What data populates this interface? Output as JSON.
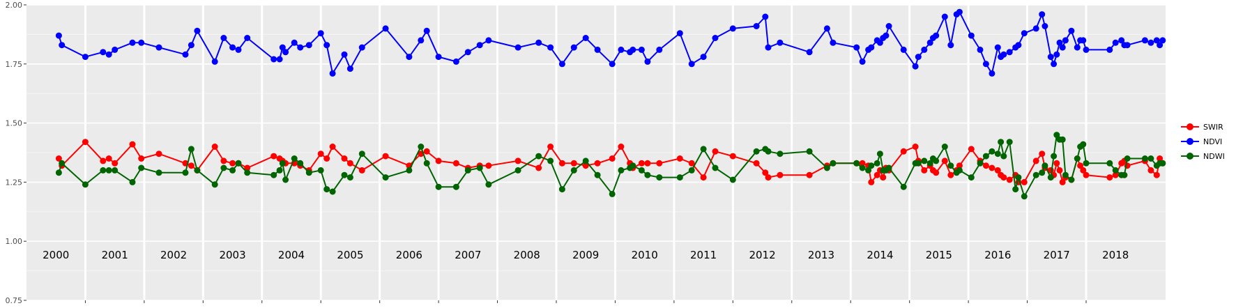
{
  "chart_data": {
    "type": "line",
    "title": "",
    "xlabel": "",
    "ylabel": "",
    "ylim": [
      0.75,
      2.0
    ],
    "yticks": [
      "0.75",
      "1.00",
      "1.25",
      "1.50",
      "1.75",
      "2.00"
    ],
    "ytick_values": [
      0.75,
      1.0,
      1.25,
      1.5,
      1.75,
      2.0
    ],
    "xlim": [
      1999.5,
      2018.85
    ],
    "years": [
      "2000",
      "2001",
      "2002",
      "2003",
      "2004",
      "2005",
      "2006",
      "2007",
      "2008",
      "2009",
      "2010",
      "2011",
      "2012",
      "2013",
      "2014",
      "2015",
      "2016",
      "2017",
      "2018"
    ],
    "grid": true,
    "legend_position": "right",
    "series": [
      {
        "name": "SWIR",
        "color": "#ff0000",
        "x": [
          2000.05,
          2000.1,
          2000.5,
          2000.8,
          2000.9,
          2001.0,
          2001.3,
          2001.45,
          2001.75,
          2002.2,
          2002.3,
          2002.4,
          2002.7,
          2002.85,
          2003.0,
          2003.1,
          2003.25,
          2003.7,
          2003.8,
          2003.85,
          2003.9,
          2004.05,
          2004.15,
          2004.3,
          2004.5,
          2004.6,
          2004.7,
          2004.9,
          2005.0,
          2005.2,
          2005.6,
          2006.0,
          2006.2,
          2006.3,
          2006.5,
          2006.8,
          2007.0,
          2007.2,
          2007.35,
          2007.85,
          2008.2,
          2008.4,
          2008.6,
          2008.8,
          2009.0,
          2009.2,
          2009.45,
          2009.6,
          2009.75,
          2009.8,
          2009.95,
          2010.05,
          2010.25,
          2010.6,
          2010.8,
          2011.0,
          2011.2,
          2011.5,
          2011.9,
          2012.05,
          2012.1,
          2012.3,
          2012.8,
          2013.1,
          2013.2,
          2013.6,
          2013.7,
          2013.8,
          2013.85,
          2013.95,
          2014.0,
          2014.05,
          2014.1,
          2014.15,
          2014.4,
          2014.6,
          2014.65,
          2014.75,
          2014.85,
          2014.9,
          2014.95,
          2015.1,
          2015.2,
          2015.3,
          2015.35,
          2015.55,
          2015.7,
          2015.8,
          2015.9,
          2016.0,
          2016.05,
          2016.1,
          2016.2,
          2016.3,
          2016.35,
          2016.45,
          2016.65,
          2016.75,
          2016.8,
          2016.9,
          2016.95,
          2017.0,
          2017.05,
          2017.1,
          2017.15,
          2017.25,
          2017.35,
          2017.4,
          2017.45,
          2017.5,
          2017.9,
          2018.0,
          2018.1,
          2018.15,
          2018.2,
          2018.5,
          2018.6,
          2018.7,
          2018.75,
          2018.8
        ],
        "values": [
          1.35,
          1.32,
          1.42,
          1.34,
          1.35,
          1.33,
          1.41,
          1.35,
          1.37,
          1.33,
          1.32,
          1.3,
          1.4,
          1.34,
          1.33,
          1.33,
          1.31,
          1.36,
          1.35,
          1.34,
          1.33,
          1.33,
          1.32,
          1.3,
          1.37,
          1.35,
          1.4,
          1.35,
          1.33,
          1.3,
          1.36,
          1.32,
          1.37,
          1.38,
          1.34,
          1.33,
          1.31,
          1.32,
          1.32,
          1.34,
          1.31,
          1.4,
          1.33,
          1.33,
          1.32,
          1.33,
          1.35,
          1.4,
          1.33,
          1.31,
          1.33,
          1.33,
          1.33,
          1.35,
          1.33,
          1.27,
          1.38,
          1.36,
          1.33,
          1.29,
          1.27,
          1.28,
          1.28,
          1.32,
          1.33,
          1.33,
          1.33,
          1.32,
          1.25,
          1.28,
          1.3,
          1.27,
          1.31,
          1.3,
          1.38,
          1.4,
          1.34,
          1.3,
          1.32,
          1.3,
          1.29,
          1.34,
          1.28,
          1.3,
          1.32,
          1.39,
          1.34,
          1.32,
          1.31,
          1.3,
          1.28,
          1.27,
          1.26,
          1.28,
          1.25,
          1.25,
          1.34,
          1.37,
          1.31,
          1.3,
          1.28,
          1.33,
          1.3,
          1.25,
          1.27,
          1.26,
          1.35,
          1.32,
          1.3,
          1.28,
          1.27,
          1.28,
          1.33,
          1.34,
          1.32,
          1.34,
          1.3,
          1.28,
          1.35,
          1.33
        ]
      },
      {
        "name": "NDVI",
        "color": "#0000ff",
        "x": [
          2000.05,
          2000.1,
          2000.5,
          2000.8,
          2000.9,
          2001.0,
          2001.3,
          2001.45,
          2001.75,
          2002.2,
          2002.3,
          2002.4,
          2002.7,
          2002.85,
          2003.0,
          2003.1,
          2003.25,
          2003.7,
          2003.8,
          2003.85,
          2003.9,
          2004.05,
          2004.15,
          2004.3,
          2004.5,
          2004.6,
          2004.7,
          2004.9,
          2005.0,
          2005.2,
          2005.6,
          2006.0,
          2006.2,
          2006.3,
          2006.5,
          2006.8,
          2007.0,
          2007.2,
          2007.35,
          2007.85,
          2008.2,
          2008.4,
          2008.6,
          2008.8,
          2009.0,
          2009.2,
          2009.45,
          2009.6,
          2009.75,
          2009.8,
          2009.95,
          2010.05,
          2010.25,
          2010.6,
          2010.8,
          2011.0,
          2011.2,
          2011.5,
          2011.9,
          2012.05,
          2012.1,
          2012.3,
          2012.8,
          2013.1,
          2013.2,
          2013.6,
          2013.7,
          2013.8,
          2013.85,
          2013.95,
          2014.0,
          2014.05,
          2014.1,
          2014.15,
          2014.4,
          2014.6,
          2014.65,
          2014.75,
          2014.85,
          2014.9,
          2014.95,
          2015.1,
          2015.2,
          2015.3,
          2015.35,
          2015.55,
          2015.7,
          2015.8,
          2015.9,
          2016.0,
          2016.05,
          2016.1,
          2016.2,
          2016.3,
          2016.35,
          2016.45,
          2016.65,
          2016.75,
          2016.8,
          2016.9,
          2016.95,
          2017.0,
          2017.05,
          2017.1,
          2017.15,
          2017.25,
          2017.35,
          2017.4,
          2017.45,
          2017.5,
          2017.9,
          2018.0,
          2018.1,
          2018.15,
          2018.2,
          2018.5,
          2018.6,
          2018.7,
          2018.75,
          2018.8
        ],
        "values": [
          1.87,
          1.83,
          1.78,
          1.8,
          1.79,
          1.81,
          1.84,
          1.84,
          1.82,
          1.79,
          1.83,
          1.89,
          1.76,
          1.86,
          1.82,
          1.81,
          1.86,
          1.77,
          1.77,
          1.82,
          1.8,
          1.84,
          1.82,
          1.83,
          1.88,
          1.83,
          1.71,
          1.79,
          1.73,
          1.82,
          1.9,
          1.78,
          1.85,
          1.89,
          1.78,
          1.76,
          1.8,
          1.83,
          1.85,
          1.82,
          1.84,
          1.82,
          1.75,
          1.82,
          1.86,
          1.81,
          1.75,
          1.81,
          1.8,
          1.81,
          1.81,
          1.76,
          1.81,
          1.88,
          1.75,
          1.78,
          1.86,
          1.9,
          1.91,
          1.95,
          1.82,
          1.84,
          1.8,
          1.9,
          1.84,
          1.82,
          1.76,
          1.81,
          1.82,
          1.85,
          1.84,
          1.86,
          1.87,
          1.91,
          1.81,
          1.74,
          1.78,
          1.81,
          1.84,
          1.86,
          1.87,
          1.95,
          1.83,
          1.96,
          1.97,
          1.87,
          1.81,
          1.75,
          1.71,
          1.82,
          1.78,
          1.79,
          1.8,
          1.82,
          1.83,
          1.88,
          1.9,
          1.96,
          1.91,
          1.78,
          1.75,
          1.79,
          1.84,
          1.82,
          1.85,
          1.89,
          1.82,
          1.85,
          1.85,
          1.81,
          1.81,
          1.84,
          1.85,
          1.83,
          1.83,
          1.85,
          1.84,
          1.85,
          1.83,
          1.85
        ]
      },
      {
        "name": "NDWI",
        "color": "#006400",
        "x": [
          2000.05,
          2000.1,
          2000.5,
          2000.8,
          2000.9,
          2001.0,
          2001.3,
          2001.45,
          2001.75,
          2002.2,
          2002.3,
          2002.4,
          2002.7,
          2002.85,
          2003.0,
          2003.1,
          2003.25,
          2003.7,
          2003.8,
          2003.85,
          2003.9,
          2004.05,
          2004.15,
          2004.3,
          2004.5,
          2004.6,
          2004.7,
          2004.9,
          2005.0,
          2005.2,
          2005.6,
          2006.0,
          2006.2,
          2006.3,
          2006.5,
          2006.8,
          2007.0,
          2007.2,
          2007.35,
          2007.85,
          2008.2,
          2008.4,
          2008.6,
          2008.8,
          2009.0,
          2009.2,
          2009.45,
          2009.6,
          2009.75,
          2009.8,
          2009.95,
          2010.05,
          2010.25,
          2010.6,
          2010.8,
          2011.0,
          2011.2,
          2011.5,
          2011.9,
          2012.05,
          2012.1,
          2012.3,
          2012.8,
          2013.1,
          2013.2,
          2013.6,
          2013.7,
          2013.8,
          2013.85,
          2013.95,
          2014.0,
          2014.05,
          2014.1,
          2014.15,
          2014.4,
          2014.6,
          2014.65,
          2014.75,
          2014.85,
          2014.9,
          2014.95,
          2015.1,
          2015.2,
          2015.3,
          2015.35,
          2015.55,
          2015.7,
          2015.8,
          2015.9,
          2016.0,
          2016.05,
          2016.1,
          2016.2,
          2016.3,
          2016.35,
          2016.45,
          2016.65,
          2016.75,
          2016.8,
          2016.9,
          2016.95,
          2017.0,
          2017.05,
          2017.1,
          2017.15,
          2017.25,
          2017.35,
          2017.4,
          2017.45,
          2017.5,
          2017.9,
          2018.0,
          2018.1,
          2018.15,
          2018.2,
          2018.5,
          2018.6,
          2018.7,
          2018.75,
          2018.8
        ],
        "values": [
          1.29,
          1.33,
          1.24,
          1.3,
          1.3,
          1.3,
          1.25,
          1.31,
          1.29,
          1.29,
          1.39,
          1.3,
          1.24,
          1.31,
          1.3,
          1.33,
          1.29,
          1.28,
          1.3,
          1.33,
          1.26,
          1.35,
          1.33,
          1.29,
          1.3,
          1.22,
          1.21,
          1.28,
          1.27,
          1.37,
          1.27,
          1.3,
          1.4,
          1.33,
          1.23,
          1.23,
          1.3,
          1.31,
          1.24,
          1.3,
          1.36,
          1.34,
          1.22,
          1.3,
          1.34,
          1.28,
          1.2,
          1.3,
          1.31,
          1.32,
          1.3,
          1.28,
          1.27,
          1.27,
          1.3,
          1.39,
          1.31,
          1.26,
          1.38,
          1.39,
          1.38,
          1.37,
          1.38,
          1.31,
          1.33,
          1.33,
          1.31,
          1.3,
          1.32,
          1.33,
          1.37,
          1.3,
          1.3,
          1.31,
          1.23,
          1.33,
          1.33,
          1.34,
          1.33,
          1.35,
          1.34,
          1.4,
          1.32,
          1.29,
          1.3,
          1.27,
          1.33,
          1.36,
          1.38,
          1.37,
          1.42,
          1.36,
          1.42,
          1.22,
          1.27,
          1.19,
          1.28,
          1.29,
          1.32,
          1.27,
          1.36,
          1.45,
          1.43,
          1.43,
          1.28,
          1.26,
          1.35,
          1.4,
          1.41,
          1.33,
          1.33,
          1.3,
          1.28,
          1.28,
          1.35,
          1.35,
          1.35,
          1.32,
          1.33,
          1.33
        ]
      }
    ]
  }
}
